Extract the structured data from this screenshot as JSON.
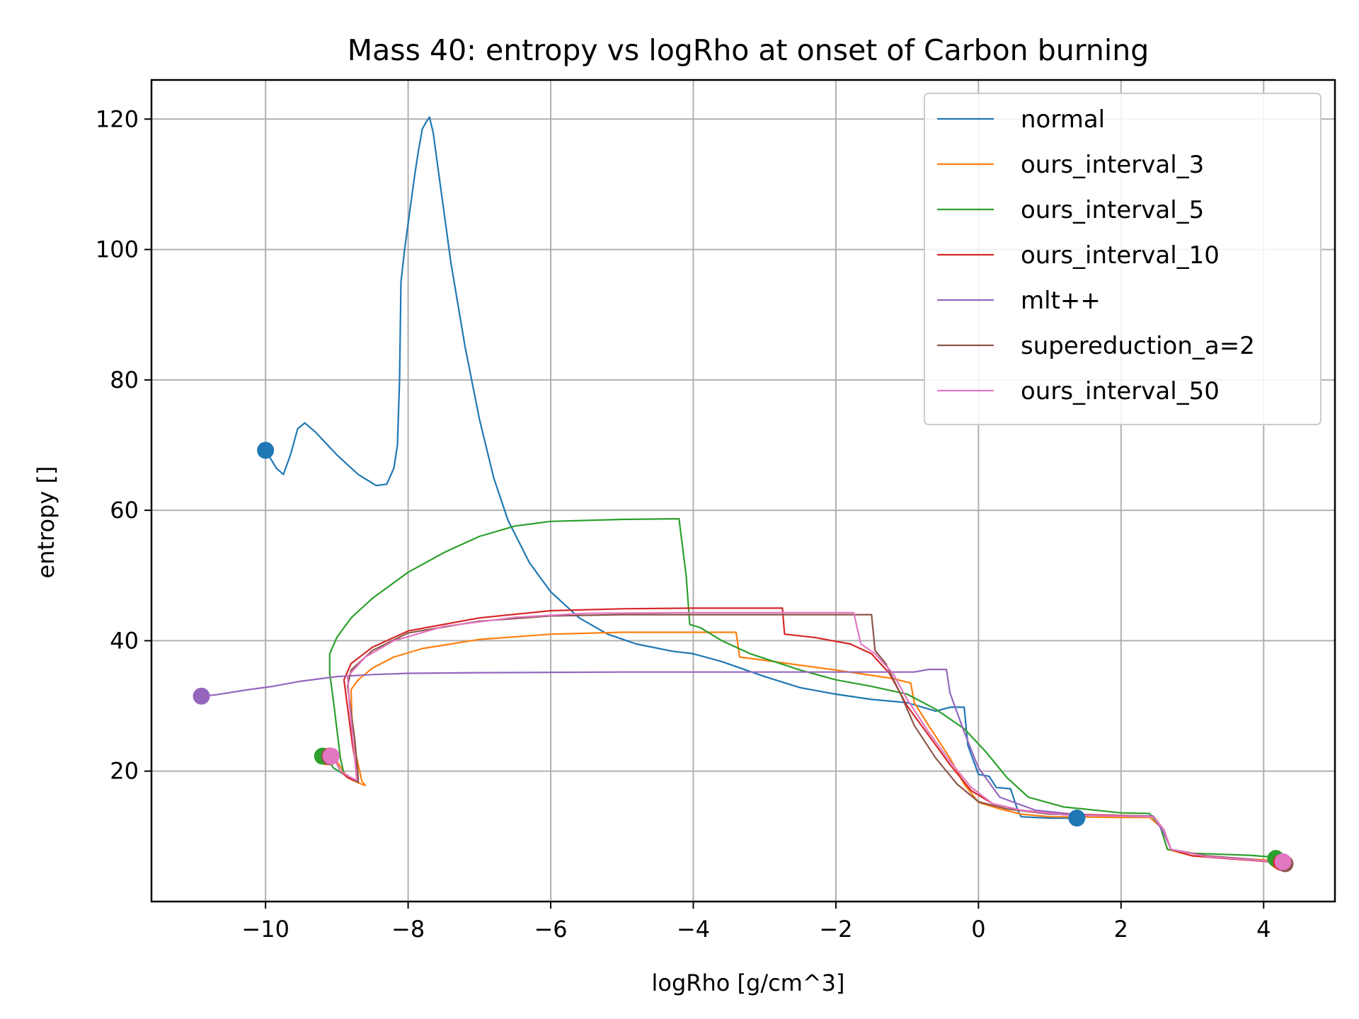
{
  "chart_data": {
    "type": "line",
    "title": "Mass 40: entropy vs logRho at onset of Carbon burning",
    "xlabel": "logRho [g/cm^3]",
    "ylabel": "entropy []",
    "xlim": [
      -11.6,
      5.0
    ],
    "ylim": [
      0,
      126
    ],
    "x_ticks": [
      -10,
      -8,
      -6,
      -4,
      -2,
      0,
      2,
      4
    ],
    "x_tick_labels": [
      "−10",
      "−8",
      "−6",
      "−4",
      "−2",
      "0",
      "2",
      "4"
    ],
    "y_ticks": [
      20,
      40,
      60,
      80,
      100,
      120
    ],
    "y_tick_labels": [
      "20",
      "40",
      "60",
      "80",
      "100",
      "120"
    ],
    "grid": true,
    "legend_position": "top-right",
    "series": [
      {
        "name": "normal",
        "color": "#1f77b4",
        "points": [
          [
            -10.0,
            69.2
          ],
          [
            -9.85,
            66.5
          ],
          [
            -9.75,
            65.5
          ],
          [
            -9.65,
            68.5
          ],
          [
            -9.55,
            72.5
          ],
          [
            -9.45,
            73.4
          ],
          [
            -9.3,
            72.0
          ],
          [
            -9.0,
            68.5
          ],
          [
            -8.7,
            65.5
          ],
          [
            -8.45,
            63.8
          ],
          [
            -8.3,
            64.0
          ],
          [
            -8.2,
            66.5
          ],
          [
            -8.15,
            70.0
          ],
          [
            -8.12,
            80.0
          ],
          [
            -8.1,
            95.0
          ],
          [
            -8.05,
            100.0
          ],
          [
            -7.95,
            108.0
          ],
          [
            -7.9,
            112.0
          ],
          [
            -7.85,
            115.5
          ],
          [
            -7.8,
            118.5
          ],
          [
            -7.75,
            119.5
          ],
          [
            -7.7,
            120.3
          ],
          [
            -7.65,
            118.0
          ],
          [
            -7.55,
            110.0
          ],
          [
            -7.4,
            98.0
          ],
          [
            -7.2,
            85.0
          ],
          [
            -7.0,
            74.0
          ],
          [
            -6.8,
            65.0
          ],
          [
            -6.6,
            58.5
          ],
          [
            -6.3,
            52.0
          ],
          [
            -6.0,
            47.5
          ],
          [
            -5.6,
            43.5
          ],
          [
            -5.2,
            41.0
          ],
          [
            -4.8,
            39.5
          ],
          [
            -4.3,
            38.4
          ],
          [
            -4.0,
            38.0
          ],
          [
            -3.6,
            36.8
          ],
          [
            -3.0,
            34.5
          ],
          [
            -2.5,
            32.8
          ],
          [
            -2.0,
            31.8
          ],
          [
            -1.5,
            31.0
          ],
          [
            -1.0,
            30.5
          ],
          [
            -0.6,
            29.2
          ],
          [
            -0.4,
            29.8
          ],
          [
            -0.2,
            29.8
          ],
          [
            -0.15,
            24.0
          ],
          [
            -0.05,
            21.0
          ],
          [
            0.0,
            19.5
          ],
          [
            0.15,
            19.2
          ],
          [
            0.25,
            17.5
          ],
          [
            0.45,
            17.3
          ],
          [
            0.55,
            14.0
          ],
          [
            0.6,
            13.0
          ],
          [
            1.0,
            12.8
          ],
          [
            1.38,
            12.8
          ]
        ],
        "markers": [
          [
            -10.0,
            69.2
          ],
          [
            1.38,
            12.8
          ]
        ]
      },
      {
        "name": "ours_interval_3",
        "color": "#ff7f0e",
        "points": [
          [
            -9.1,
            22.2
          ],
          [
            -9.0,
            21.5
          ],
          [
            -8.85,
            19.0
          ],
          [
            -8.7,
            18.2
          ],
          [
            -8.6,
            17.8
          ],
          [
            -8.65,
            18.5
          ],
          [
            -8.78,
            25.0
          ],
          [
            -8.8,
            32.5
          ],
          [
            -8.7,
            34.0
          ],
          [
            -8.5,
            35.8
          ],
          [
            -8.2,
            37.5
          ],
          [
            -7.8,
            38.8
          ],
          [
            -7.0,
            40.2
          ],
          [
            -6.0,
            41.0
          ],
          [
            -5.0,
            41.3
          ],
          [
            -3.4,
            41.3
          ],
          [
            -3.35,
            37.5
          ],
          [
            -3.0,
            37.0
          ],
          [
            -2.0,
            35.5
          ],
          [
            -1.2,
            34.2
          ],
          [
            -0.95,
            33.5
          ],
          [
            -0.9,
            30.5
          ],
          [
            -0.7,
            27.0
          ],
          [
            -0.4,
            22.0
          ],
          [
            -0.2,
            18.0
          ],
          [
            0.0,
            15.2
          ],
          [
            0.3,
            14.2
          ],
          [
            0.6,
            13.4
          ],
          [
            1.0,
            13.0
          ],
          [
            2.0,
            12.9
          ],
          [
            2.4,
            12.9
          ],
          [
            2.55,
            11.5
          ],
          [
            2.65,
            8.0
          ],
          [
            3.0,
            7.0
          ],
          [
            3.5,
            6.6
          ],
          [
            4.0,
            6.4
          ],
          [
            4.15,
            6.2
          ]
        ],
        "markers": [
          [
            -9.15,
            22.2
          ],
          [
            4.2,
            6.3
          ]
        ]
      },
      {
        "name": "ours_interval_5",
        "color": "#2ca02c",
        "points": [
          [
            -9.15,
            22.3
          ],
          [
            -9.05,
            20.5
          ],
          [
            -8.9,
            19.5
          ],
          [
            -8.95,
            22.0
          ],
          [
            -9.05,
            31.0
          ],
          [
            -9.1,
            35.0
          ],
          [
            -9.1,
            38.0
          ],
          [
            -9.0,
            40.5
          ],
          [
            -8.8,
            43.5
          ],
          [
            -8.5,
            46.5
          ],
          [
            -8.0,
            50.5
          ],
          [
            -7.5,
            53.5
          ],
          [
            -7.0,
            56.0
          ],
          [
            -6.5,
            57.6
          ],
          [
            -6.0,
            58.3
          ],
          [
            -5.0,
            58.6
          ],
          [
            -4.2,
            58.7
          ],
          [
            -4.1,
            50.0
          ],
          [
            -4.05,
            42.5
          ],
          [
            -3.9,
            42.0
          ],
          [
            -3.6,
            40.0
          ],
          [
            -3.2,
            38.0
          ],
          [
            -2.5,
            35.5
          ],
          [
            -2.0,
            34.0
          ],
          [
            -1.5,
            33.0
          ],
          [
            -1.0,
            31.8
          ],
          [
            -0.6,
            29.5
          ],
          [
            -0.2,
            26.5
          ],
          [
            0.1,
            23.0
          ],
          [
            0.4,
            19.0
          ],
          [
            0.7,
            16.0
          ],
          [
            1.2,
            14.5
          ],
          [
            2.0,
            13.6
          ],
          [
            2.4,
            13.5
          ],
          [
            2.55,
            11.5
          ],
          [
            2.65,
            8.0
          ],
          [
            3.0,
            7.4
          ],
          [
            3.8,
            7.1
          ],
          [
            4.15,
            6.8
          ]
        ],
        "markers": [
          [
            -9.2,
            22.3
          ],
          [
            4.17,
            6.6
          ]
        ]
      },
      {
        "name": "ours_interval_10",
        "color": "#d62728",
        "points": [
          [
            -9.05,
            22.3
          ],
          [
            -8.95,
            20.0
          ],
          [
            -8.85,
            19.0
          ],
          [
            -8.75,
            18.5
          ],
          [
            -8.7,
            18.8
          ],
          [
            -8.78,
            24.0
          ],
          [
            -8.9,
            34.0
          ],
          [
            -8.8,
            36.5
          ],
          [
            -8.5,
            39.0
          ],
          [
            -8.0,
            41.5
          ],
          [
            -7.0,
            43.5
          ],
          [
            -6.0,
            44.6
          ],
          [
            -5.0,
            44.9
          ],
          [
            -4.0,
            45.0
          ],
          [
            -2.75,
            45.0
          ],
          [
            -2.72,
            41.0
          ],
          [
            -2.3,
            40.5
          ],
          [
            -1.8,
            39.5
          ],
          [
            -1.5,
            38.0
          ],
          [
            -1.25,
            35.0
          ],
          [
            -1.0,
            30.0
          ],
          [
            -0.7,
            25.5
          ],
          [
            -0.4,
            21.0
          ],
          [
            -0.1,
            17.0
          ],
          [
            0.2,
            15.0
          ],
          [
            0.6,
            14.0
          ],
          [
            1.2,
            13.4
          ],
          [
            2.0,
            13.2
          ],
          [
            2.45,
            13.1
          ],
          [
            2.6,
            11.0
          ],
          [
            2.7,
            8.0
          ],
          [
            3.0,
            7.0
          ],
          [
            3.6,
            6.5
          ],
          [
            4.2,
            6.0
          ]
        ],
        "markers": [
          [
            -9.1,
            22.3
          ],
          [
            4.25,
            6.0
          ]
        ]
      },
      {
        "name": "mlt++",
        "color": "#9467bd",
        "points": [
          [
            -10.9,
            31.5
          ],
          [
            -10.7,
            31.7
          ],
          [
            -10.3,
            32.4
          ],
          [
            -9.9,
            33.0
          ],
          [
            -9.5,
            33.8
          ],
          [
            -9.0,
            34.5
          ],
          [
            -8.5,
            34.8
          ],
          [
            -8.0,
            35.0
          ],
          [
            -7.0,
            35.1
          ],
          [
            -5.0,
            35.2
          ],
          [
            -3.0,
            35.2
          ],
          [
            -1.5,
            35.2
          ],
          [
            -0.9,
            35.2
          ],
          [
            -0.7,
            35.6
          ],
          [
            -0.45,
            35.6
          ],
          [
            -0.4,
            32.0
          ],
          [
            -0.2,
            26.0
          ],
          [
            0.0,
            20.5
          ],
          [
            0.3,
            16.0
          ],
          [
            0.8,
            14.0
          ],
          [
            1.5,
            13.2
          ],
          [
            2.45,
            13.1
          ],
          [
            2.6,
            10.5
          ],
          [
            2.7,
            8.0
          ],
          [
            3.2,
            7.0
          ],
          [
            3.8,
            6.5
          ],
          [
            4.2,
            6.0
          ]
        ],
        "markers": [
          [
            -10.9,
            31.5
          ]
        ]
      },
      {
        "name": "supereduction_a=2",
        "color": "#8c564b",
        "points": [
          [
            -9.05,
            22.2
          ],
          [
            -8.95,
            20.0
          ],
          [
            -8.8,
            19.0
          ],
          [
            -8.7,
            18.3
          ],
          [
            -8.7,
            19.0
          ],
          [
            -8.75,
            25.0
          ],
          [
            -8.85,
            33.0
          ],
          [
            -8.8,
            35.5
          ],
          [
            -8.5,
            38.5
          ],
          [
            -8.0,
            41.2
          ],
          [
            -7.0,
            43.0
          ],
          [
            -6.0,
            43.8
          ],
          [
            -5.0,
            44.0
          ],
          [
            -3.0,
            44.0
          ],
          [
            -1.5,
            44.0
          ],
          [
            -1.45,
            38.5
          ],
          [
            -1.3,
            36.5
          ],
          [
            -1.1,
            32.0
          ],
          [
            -0.9,
            27.0
          ],
          [
            -0.6,
            22.0
          ],
          [
            -0.3,
            18.0
          ],
          [
            0.0,
            15.3
          ],
          [
            0.4,
            14.2
          ],
          [
            1.0,
            13.4
          ],
          [
            2.0,
            13.1
          ],
          [
            2.45,
            13.0
          ],
          [
            2.6,
            11.0
          ],
          [
            2.7,
            8.0
          ],
          [
            3.2,
            7.0
          ],
          [
            3.8,
            6.5
          ],
          [
            4.3,
            5.8
          ]
        ],
        "markers": [
          [
            -9.1,
            22.2
          ],
          [
            4.3,
            5.8
          ]
        ]
      },
      {
        "name": "ours_interval_50",
        "color": "#e377c2",
        "points": [
          [
            -9.05,
            22.3
          ],
          [
            -8.95,
            20.0
          ],
          [
            -8.8,
            19.0
          ],
          [
            -8.72,
            18.6
          ],
          [
            -8.75,
            22.0
          ],
          [
            -8.82,
            30.0
          ],
          [
            -8.85,
            34.5
          ],
          [
            -8.6,
            37.5
          ],
          [
            -8.2,
            40.0
          ],
          [
            -7.5,
            42.2
          ],
          [
            -6.5,
            43.6
          ],
          [
            -5.5,
            44.2
          ],
          [
            -4.0,
            44.3
          ],
          [
            -2.5,
            44.3
          ],
          [
            -1.75,
            44.3
          ],
          [
            -1.65,
            39.5
          ],
          [
            -1.45,
            38.0
          ],
          [
            -1.2,
            35.0
          ],
          [
            -1.0,
            31.0
          ],
          [
            -0.7,
            26.0
          ],
          [
            -0.4,
            21.5
          ],
          [
            -0.1,
            17.5
          ],
          [
            0.2,
            15.0
          ],
          [
            0.6,
            14.0
          ],
          [
            1.2,
            13.3
          ],
          [
            2.0,
            13.1
          ],
          [
            2.45,
            13.0
          ],
          [
            2.6,
            11.0
          ],
          [
            2.7,
            8.0
          ],
          [
            3.2,
            6.9
          ],
          [
            3.8,
            6.4
          ],
          [
            4.25,
            6.0
          ]
        ],
        "markers": [
          [
            -9.08,
            22.3
          ],
          [
            4.27,
            6.1
          ]
        ]
      }
    ]
  }
}
